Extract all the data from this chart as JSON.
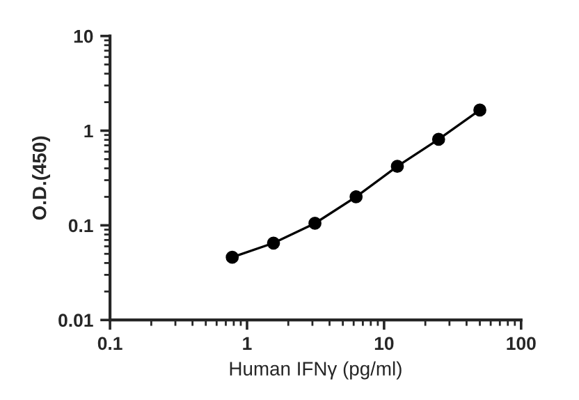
{
  "chart_data": {
    "type": "line",
    "xlabel": "Human IFNγ (pg/ml)",
    "ylabel": "O.D.(450)",
    "log": "xy",
    "marker": "circle",
    "line_style": "solid",
    "grid": false,
    "xlim": [
      0.1,
      100
    ],
    "xticks": [
      0.1,
      1,
      10,
      100
    ],
    "ylim": [
      0.01,
      10
    ],
    "yticks": [
      0.01,
      0.1,
      1,
      10
    ],
    "series": [
      {
        "color": "#000000",
        "x": [
          0.78,
          1.56,
          3.13,
          6.25,
          12.5,
          25,
          50
        ],
        "values": [
          0.046,
          0.065,
          0.105,
          0.2,
          0.42,
          0.81,
          1.65
        ]
      }
    ]
  }
}
